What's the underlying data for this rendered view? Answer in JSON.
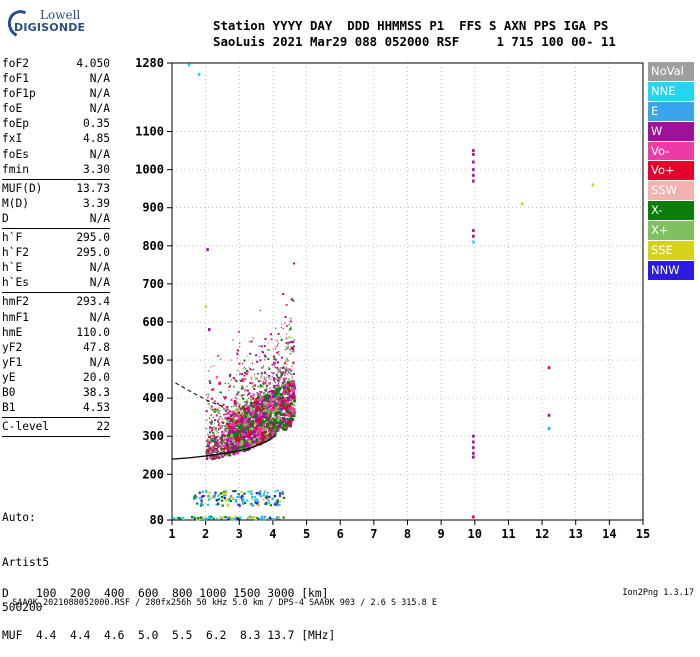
{
  "logo": {
    "line1": "Lowell",
    "line2": "DIGISONDE"
  },
  "header": {
    "row1": "Station YYYY DAY  DDD HHMMSS P1  FFS S AXN PPS IGA PS",
    "row2": "SaoLuis 2021 Mar29 088 052000 RSF     1 715 100 00- 11"
  },
  "params": [
    {
      "name": "foF2",
      "value": "4.050"
    },
    {
      "name": "foF1",
      "value": "N/A"
    },
    {
      "name": "foF1p",
      "value": "N/A"
    },
    {
      "name": "foE",
      "value": "N/A"
    },
    {
      "name": "foEp",
      "value": "0.35"
    },
    {
      "name": "fxI",
      "value": "4.85"
    },
    {
      "name": "foEs",
      "value": "N/A"
    },
    {
      "name": "fmin",
      "value": "3.30"
    },
    {
      "sep": true
    },
    {
      "name": "MUF(D)",
      "value": "13.73"
    },
    {
      "name": "M(D)",
      "value": "3.39"
    },
    {
      "name": "D",
      "value": "N/A"
    },
    {
      "sep": true
    },
    {
      "name": "h`F",
      "value": "295.0"
    },
    {
      "name": "h`F2",
      "value": "295.0"
    },
    {
      "name": "h`E",
      "value": "N/A"
    },
    {
      "name": "h`Es",
      "value": "N/A"
    },
    {
      "sep": true
    },
    {
      "name": "hmF2",
      "value": "293.4"
    },
    {
      "name": "hmF1",
      "value": "N/A"
    },
    {
      "name": "hmE",
      "value": "110.0"
    },
    {
      "name": "yF2",
      "value": "47.8"
    },
    {
      "name": "yF1",
      "value": "N/A"
    },
    {
      "name": "yE",
      "value": "20.0"
    },
    {
      "name": "B0",
      "value": "38.3"
    },
    {
      "name": "B1",
      "value": "4.53"
    },
    {
      "sep": true
    },
    {
      "name": "C-level",
      "value": "22"
    },
    {
      "sep": true
    }
  ],
  "auto": {
    "l1": "Auto:",
    "l2": "Artist5",
    "l3": "500200"
  },
  "legend": [
    {
      "label": "NoVal",
      "color": "#9e9e9e"
    },
    {
      "label": "NNE",
      "color": "#22d6f0"
    },
    {
      "label": "E",
      "color": "#3aa4ee"
    },
    {
      "label": "W",
      "color": "#a0109a"
    },
    {
      "label": "Vo-",
      "color": "#ee3aa6"
    },
    {
      "label": "Vo+",
      "color": "#e6002b"
    },
    {
      "label": "SSW",
      "color": "#f2b2b0"
    },
    {
      "label": "X-",
      "color": "#0a7d0a"
    },
    {
      "label": "X+",
      "color": "#80c060"
    },
    {
      "label": "SSE",
      "color": "#d6d21a"
    },
    {
      "label": "NNW",
      "color": "#2b1ae0"
    }
  ],
  "distance_table": {
    "row1": "D    100  200  400  600  800 1000 1500 3000 [km]",
    "row2": "MUF  4.4  4.4  4.6  5.0  5.5  6.2  8.3 13.7 [MHz]"
  },
  "footer": {
    "left": "SAA0K_2021088052000.RSF / 280fx256h 50 kHz 5.0 km / DPS-4 SAA0K 903 / 2.6 S 315.8 E",
    "right": "Ion2Png 1.3.17"
  },
  "chart_data": {
    "type": "scatter",
    "title": "",
    "xlabel": "",
    "ylabel": "",
    "xlim": [
      1,
      15
    ],
    "x_ticks": [
      1,
      2,
      3,
      4,
      5,
      6,
      7,
      8,
      9,
      10,
      11,
      12,
      13,
      14,
      15
    ],
    "y_ticks": [
      80,
      200,
      300,
      400,
      500,
      600,
      700,
      800,
      900,
      1000,
      1100,
      1280
    ],
    "y_range": [
      80,
      1280
    ],
    "series": [
      {
        "name": "W",
        "points": [
          [
            9.95,
            1050
          ],
          [
            9.95,
            1040
          ],
          [
            9.95,
            1020
          ],
          [
            9.95,
            1000
          ],
          [
            9.95,
            985
          ],
          [
            9.95,
            970
          ],
          [
            9.95,
            840
          ],
          [
            9.95,
            825
          ],
          [
            9.95,
            300
          ],
          [
            9.95,
            285
          ],
          [
            9.95,
            270
          ],
          [
            9.95,
            255
          ],
          [
            9.95,
            245
          ],
          [
            2.05,
            790
          ],
          [
            12.2,
            355
          ],
          [
            2.1,
            580
          ]
        ]
      },
      {
        "name": "Vo+",
        "points": [
          [
            12.2,
            480
          ],
          [
            9.95,
            88
          ]
        ]
      },
      {
        "name": "SSE",
        "points": [
          [
            11.4,
            910
          ],
          [
            13.5,
            960
          ],
          [
            2.0,
            640
          ]
        ]
      },
      {
        "name": "NNE",
        "points": [
          [
            1.5,
            1275
          ],
          [
            1.8,
            1250
          ],
          [
            12.2,
            320
          ],
          [
            9.95,
            810
          ]
        ]
      },
      {
        "name": "E",
        "points": [
          [
            12.2,
            320
          ]
        ]
      }
    ],
    "trace_F_region": [
      [
        1,
        240
      ],
      [
        1.5,
        243
      ],
      [
        2,
        248
      ],
      [
        2.5,
        254
      ],
      [
        3,
        262
      ],
      [
        3.3,
        268
      ],
      [
        3.6,
        278
      ],
      [
        3.9,
        290
      ],
      [
        4.05,
        300
      ]
    ],
    "trace_dashed": [
      [
        1.1,
        440
      ],
      [
        1.6,
        415
      ],
      [
        2.1,
        392
      ],
      [
        2.6,
        375
      ]
    ]
  }
}
